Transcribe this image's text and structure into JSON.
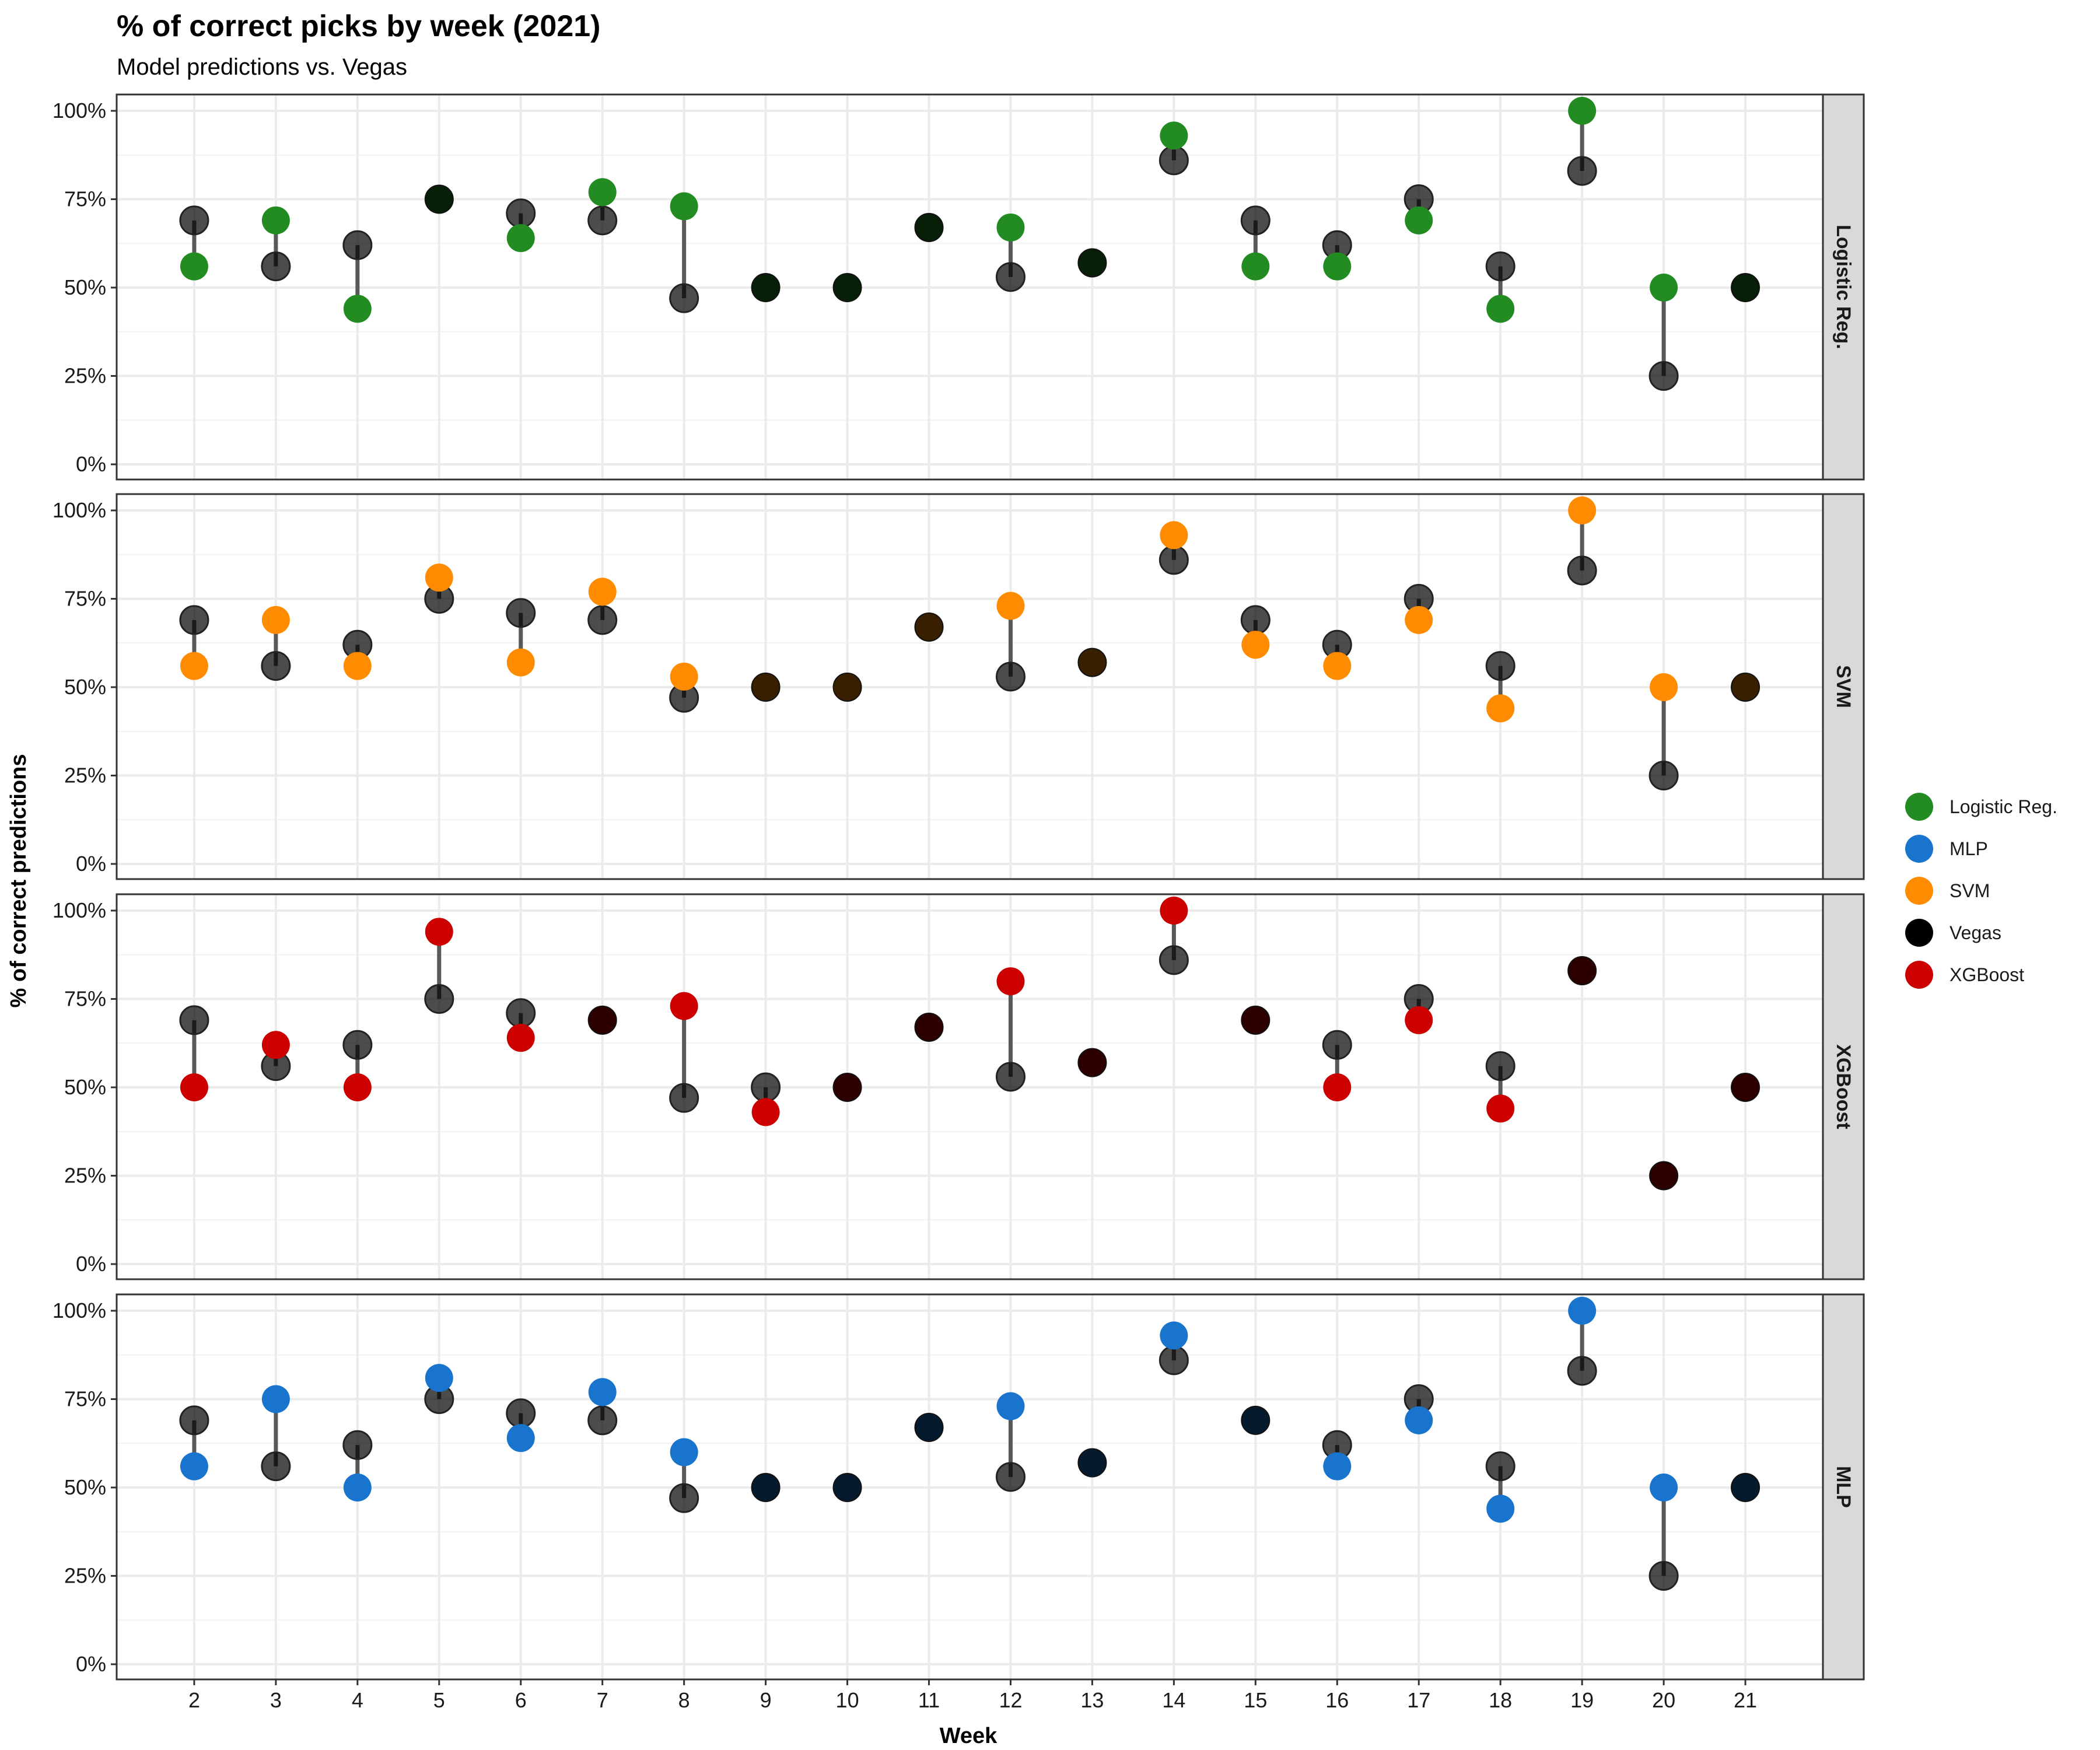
{
  "chart_data": {
    "type": "scatter",
    "title": "% of correct picks by week (2021)",
    "subtitle": "Model predictions vs. Vegas",
    "xlabel": "Week",
    "ylabel": "% of correct predictions",
    "x": [
      2,
      3,
      4,
      5,
      6,
      7,
      8,
      9,
      10,
      11,
      12,
      13,
      14,
      15,
      16,
      17,
      18,
      19,
      20,
      21
    ],
    "x_tick_labels": [
      "2",
      "3",
      "4",
      "5",
      "6",
      "7",
      "8",
      "9",
      "10",
      "11",
      "12",
      "13",
      "14",
      "15",
      "16",
      "17",
      "18",
      "19",
      "20",
      "21"
    ],
    "y_tick_labels": [
      "0%",
      "25%",
      "50%",
      "75%",
      "100%"
    ],
    "ylim": [
      0,
      100
    ],
    "grid": true,
    "legend_position": "right",
    "legend": [
      {
        "name": "Logistic Reg.",
        "color": "#228B22"
      },
      {
        "name": "MLP",
        "color": "#1874CD"
      },
      {
        "name": "SVM",
        "color": "#FF8C00"
      },
      {
        "name": "Vegas",
        "color": "#000000"
      },
      {
        "name": "XGBoost",
        "color": "#CD0000"
      }
    ],
    "vegas": [
      69,
      56,
      62,
      75,
      71,
      69,
      47,
      50,
      50,
      67,
      53,
      57,
      86,
      69,
      62,
      75,
      56,
      83,
      25,
      50
    ],
    "panels": [
      {
        "name": "Logistic Reg.",
        "color": "#228B22",
        "values": [
          56,
          69,
          44,
          75,
          64,
          77,
          73,
          50,
          50,
          67,
          67,
          57,
          93,
          56,
          56,
          69,
          44,
          100,
          50,
          50
        ]
      },
      {
        "name": "SVM",
        "color": "#FF8C00",
        "values": [
          56,
          69,
          56,
          81,
          57,
          77,
          53,
          50,
          50,
          67,
          73,
          57,
          93,
          62,
          56,
          69,
          44,
          100,
          50,
          50
        ]
      },
      {
        "name": "XGBoost",
        "color": "#CD0000",
        "values": [
          50,
          62,
          50,
          94,
          64,
          69,
          73,
          43,
          50,
          67,
          80,
          57,
          100,
          69,
          50,
          69,
          44,
          83,
          25,
          50
        ]
      },
      {
        "name": "MLP",
        "color": "#1874CD",
        "values": [
          56,
          75,
          50,
          81,
          64,
          77,
          60,
          50,
          50,
          67,
          73,
          57,
          93,
          69,
          56,
          69,
          44,
          100,
          50,
          50
        ]
      }
    ]
  }
}
